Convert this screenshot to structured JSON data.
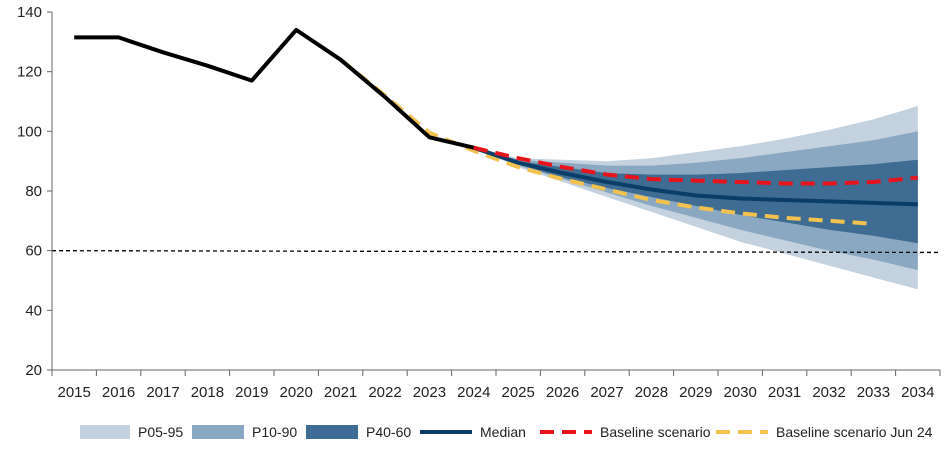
{
  "chart_data": {
    "type": "line",
    "title": "",
    "xlabel": "",
    "ylabel": "",
    "x": [
      2015,
      2016,
      2017,
      2018,
      2019,
      2020,
      2021,
      2022,
      2023,
      2024,
      2025,
      2026,
      2027,
      2028,
      2029,
      2030,
      2031,
      2032,
      2033,
      2034
    ],
    "ylim": [
      20,
      140
    ],
    "yticks": [
      20,
      40,
      60,
      80,
      100,
      120,
      140
    ],
    "reference_line": 60,
    "historical": {
      "color": "#000000",
      "x": [
        2015,
        2016,
        2017,
        2018,
        2019,
        2020,
        2021,
        2022,
        2023,
        2024
      ],
      "values": [
        131.5,
        131.5,
        126.5,
        122,
        117,
        134,
        124,
        111.5,
        98,
        94.5
      ]
    },
    "fan": {
      "x": [
        2024,
        2025,
        2026,
        2027,
        2028,
        2029,
        2030,
        2031,
        2032,
        2033,
        2034
      ],
      "bands": [
        {
          "name": "P05-95",
          "color": "#c3d2de",
          "lower": [
            94.5,
            88,
            83,
            78,
            73,
            68,
            63,
            59,
            55,
            51,
            47
          ],
          "upper": [
            94.5,
            91,
            90.5,
            90,
            91,
            93,
            95,
            97.5,
            100.5,
            104,
            108.5
          ]
        },
        {
          "name": "P10-90",
          "color": "#8aa8c1",
          "lower": [
            94.5,
            88.5,
            84,
            79.5,
            75,
            71,
            67,
            63.5,
            60,
            57,
            53.5
          ],
          "upper": [
            94.5,
            90.5,
            89.5,
            88.5,
            88.5,
            89.5,
            91,
            93,
            95,
            97,
            100
          ]
        },
        {
          "name": "P40-60",
          "color": "#3e6c92",
          "lower": [
            94.5,
            89,
            84.5,
            81,
            78,
            75,
            72,
            69.5,
            67,
            65,
            62.5
          ],
          "upper": [
            94.5,
            90,
            88,
            86,
            85.5,
            85.5,
            86,
            87,
            88,
            89,
            90.5
          ]
        }
      ]
    },
    "series": [
      {
        "name": "Median",
        "color": "#0a3d68",
        "style": "solid",
        "x": [
          2024,
          2025,
          2026,
          2027,
          2028,
          2029,
          2030,
          2031,
          2032,
          2033,
          2034
        ],
        "values": [
          94.5,
          89.5,
          86,
          83,
          80.5,
          78.5,
          77.5,
          77,
          76.5,
          76,
          75.5
        ]
      },
      {
        "name": "Baseline scenario",
        "color": "#e8141c",
        "style": "dashed",
        "x": [
          2024,
          2025,
          2026,
          2027,
          2028,
          2029,
          2030,
          2031,
          2032,
          2033,
          2034
        ],
        "values": [
          94.5,
          91,
          88,
          85.5,
          84,
          83.5,
          83,
          82.5,
          82.5,
          83,
          84.5
        ]
      },
      {
        "name": "Baseline scenario Jun 24",
        "color": "#f2c14e",
        "style": "dashed",
        "x": [
          2021,
          2022,
          2023,
          2024,
          2025,
          2026,
          2027,
          2028,
          2029,
          2030,
          2031,
          2032,
          2033
        ],
        "values": [
          124,
          112,
          99.5,
          93.5,
          88,
          84,
          80.5,
          77,
          74.5,
          72.5,
          71,
          70,
          69
        ]
      }
    ],
    "legend": {
      "position": "bottom",
      "entries": [
        "P05-95",
        "P10-90",
        "P40-60",
        "Median",
        "Baseline scenario",
        "Baseline scenario Jun 24"
      ]
    },
    "grid": false
  }
}
